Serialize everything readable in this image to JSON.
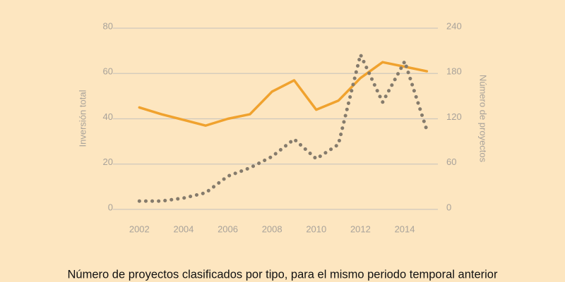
{
  "chart_data": {
    "type": "line",
    "title": "Número de proyectos clasificados por tipo, para el mismo periodo temporal anterior",
    "y_label": "Inversión total",
    "y2_label": "Número de proyectos",
    "x": [
      2002,
      2003,
      2004,
      2005,
      2006,
      2007,
      2008,
      2009,
      2010,
      2011,
      2012,
      2013,
      2014,
      2015
    ],
    "xlim": [
      2001,
      2015.5
    ],
    "xticks": [
      2002,
      2004,
      2006,
      2008,
      2010,
      2012,
      2014
    ],
    "ylim": [
      0,
      80
    ],
    "yticks": [
      0,
      20,
      40,
      60,
      80
    ],
    "y2lim": [
      0,
      240
    ],
    "y2ticks": [
      0,
      60,
      120,
      180,
      240
    ],
    "grid": true,
    "series": [
      {
        "color": "#f0a22e",
        "style": "solid",
        "axis": "y",
        "values": [
          45,
          42,
          39.5,
          37,
          40,
          42,
          52,
          57,
          44,
          48,
          58,
          65,
          63,
          61
        ]
      },
      {
        "color": "#857b6c",
        "style": "dotted",
        "axis": "y2",
        "values": [
          11,
          11,
          15,
          22,
          44,
          55,
          70,
          93,
          67,
          86,
          205,
          142,
          196,
          105
        ]
      }
    ]
  }
}
